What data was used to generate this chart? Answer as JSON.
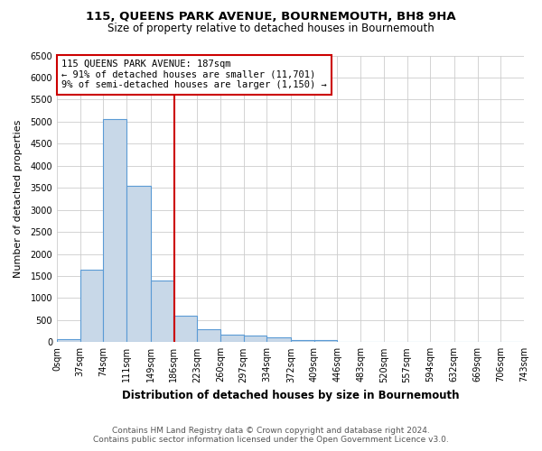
{
  "title_line1": "115, QUEENS PARK AVENUE, BOURNEMOUTH, BH8 9HA",
  "title_line2": "Size of property relative to detached houses in Bournemouth",
  "xlabel": "Distribution of detached houses by size in Bournemouth",
  "ylabel": "Number of detached properties",
  "footer_line1": "Contains HM Land Registry data © Crown copyright and database right 2024.",
  "footer_line2": "Contains public sector information licensed under the Open Government Licence v3.0.",
  "bin_edges": [
    0,
    37,
    74,
    111,
    149,
    186,
    223,
    260,
    297,
    334,
    372,
    409,
    446,
    483,
    520,
    557,
    594,
    632,
    669,
    706,
    743
  ],
  "bin_labels": [
    "0sqm",
    "37sqm",
    "74sqm",
    "111sqm",
    "149sqm",
    "186sqm",
    "223sqm",
    "260sqm",
    "297sqm",
    "334sqm",
    "372sqm",
    "409sqm",
    "446sqm",
    "483sqm",
    "520sqm",
    "557sqm",
    "594sqm",
    "632sqm",
    "669sqm",
    "706sqm",
    "743sqm"
  ],
  "counts": [
    75,
    1650,
    5050,
    3550,
    1400,
    600,
    300,
    160,
    150,
    100,
    50,
    50,
    0,
    0,
    0,
    0,
    0,
    0,
    0,
    0
  ],
  "bar_color": "#c8d8e8",
  "bar_edge_color": "#5b9bd5",
  "property_line_x": 187,
  "property_line_color": "#cc0000",
  "annotation_text_line1": "115 QUEENS PARK AVENUE: 187sqm",
  "annotation_text_line2": "← 91% of detached houses are smaller (11,701)",
  "annotation_text_line3": "9% of semi-detached houses are larger (1,150) →",
  "annotation_box_color": "#cc0000",
  "ylim": [
    0,
    6500
  ],
  "yticks": [
    0,
    500,
    1000,
    1500,
    2000,
    2500,
    3000,
    3500,
    4000,
    4500,
    5000,
    5500,
    6000,
    6500
  ],
  "background_color": "#ffffff",
  "grid_color": "#cccccc",
  "title1_fontsize": 9.5,
  "title2_fontsize": 8.5,
  "xlabel_fontsize": 8.5,
  "ylabel_fontsize": 8,
  "tick_fontsize": 7,
  "annotation_fontsize": 7.5,
  "footer_fontsize": 6.5
}
